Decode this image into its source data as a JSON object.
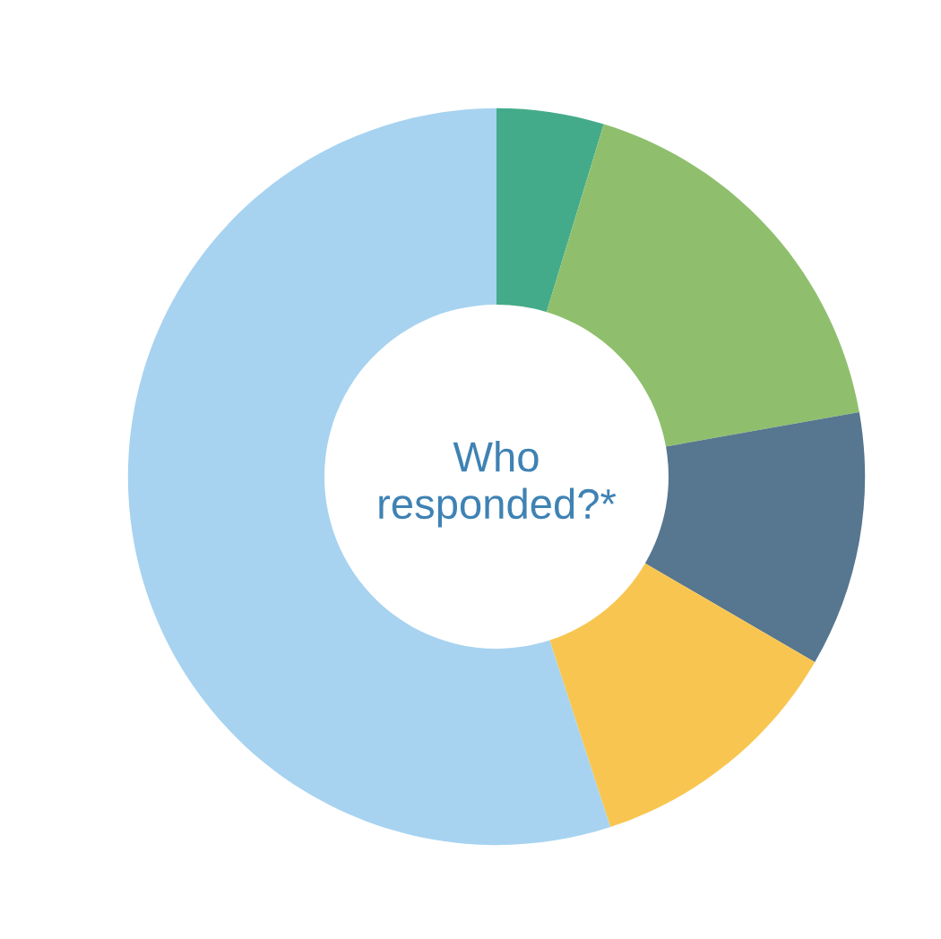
{
  "chart_data": {
    "type": "donut",
    "title": "Who\nresponded?*",
    "categories": [
      null,
      null,
      null,
      null,
      null
    ],
    "values": [
      4.7,
      17.5,
      11.2,
      11.6,
      55.0
    ],
    "colors": [
      "#44ab8a",
      "#8fbf6d",
      "#57768f",
      "#f8c650",
      "#a7d3f0"
    ]
  }
}
